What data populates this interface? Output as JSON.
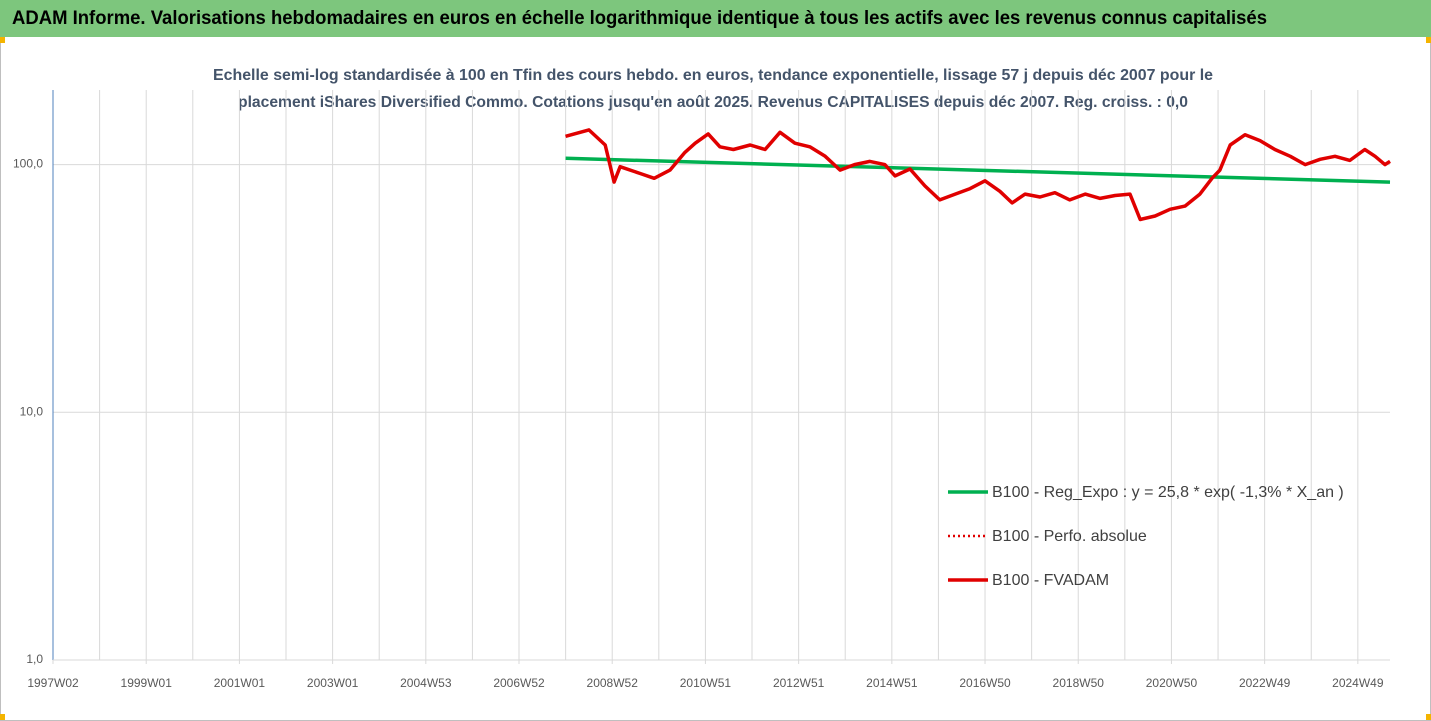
{
  "chart_data": {
    "type": "line",
    "title": "ADAM Informe. Valorisations hebdomadaires en euros en échelle logarithmique identique à tous les actifs avec les revenus connus capitalisés",
    "subtitle": [
      "Echelle semi-log standardisée à 100 en Tfin des cours hebdo. en euros, tendance exponentielle, lissage 57 j depuis déc 2007 pour le",
      "placement iShares Diversified Commo. Cotations jusqu'en août 2025. Revenus CAPITALISES depuis déc 2007. Reg. croiss. : 0,0"
    ],
    "log_scale": true,
    "ylim": [
      1,
      200
    ],
    "yticks": [
      {
        "value": 1,
        "label": "1,0"
      },
      {
        "value": 10,
        "label": "10,0"
      },
      {
        "value": 100,
        "label": "100,0"
      }
    ],
    "xlim": [
      1997.0,
      2025.69
    ],
    "xticks": [
      {
        "value": 1997,
        "label": "1997W02"
      },
      {
        "value": 1999,
        "label": "1999W01"
      },
      {
        "value": 2001,
        "label": "2001W01"
      },
      {
        "value": 2003,
        "label": "2003W01"
      },
      {
        "value": 2005,
        "label": "2004W53"
      },
      {
        "value": 2007,
        "label": "2006W52"
      },
      {
        "value": 2009,
        "label": "2008W52"
      },
      {
        "value": 2011,
        "label": "2010W51"
      },
      {
        "value": 2013,
        "label": "2012W51"
      },
      {
        "value": 2015,
        "label": "2014W51"
      },
      {
        "value": 2017,
        "label": "2016W50"
      },
      {
        "value": 2019,
        "label": "2018W50"
      },
      {
        "value": 2021,
        "label": "2020W50"
      },
      {
        "value": 2023,
        "label": "2022W49"
      },
      {
        "value": 2025,
        "label": "2024W49"
      }
    ],
    "x_grid": [
      1997,
      1998,
      1999,
      2000,
      2001,
      2002,
      2003,
      2004,
      2005,
      2006,
      2007,
      2008,
      2009,
      2010,
      2011,
      2012,
      2013,
      2014,
      2015,
      2016,
      2017,
      2018,
      2019,
      2020,
      2021,
      2022,
      2023,
      2024,
      2025
    ],
    "grid": true,
    "legend_position": "right",
    "series": [
      {
        "name": "B100 - Reg_Expo : y = 25,8 * exp( -1,3% *  X_an )",
        "color": "#00b050",
        "style": "solid",
        "x": [
          2008.0,
          2025.69
        ],
        "values": [
          106,
          85
        ]
      },
      {
        "name": "B100 - Perfo. absolue",
        "color": "#e00000",
        "style": "dotted",
        "x": [
          2008.0,
          2008.5,
          2008.85,
          2009.04,
          2009.17,
          2009.6,
          2009.9,
          2010.24,
          2010.56,
          2010.78,
          2011.06,
          2011.31,
          2011.6,
          2011.96,
          2012.28,
          2012.6,
          2012.92,
          2013.24,
          2013.57,
          2013.89,
          2014.2,
          2014.53,
          2014.85,
          2015.07,
          2015.39,
          2015.71,
          2016.03,
          2016.36,
          2016.68,
          2017.0,
          2017.32,
          2017.58,
          2017.86,
          2018.18,
          2018.5,
          2018.82,
          2019.15,
          2019.47,
          2019.79,
          2020.11,
          2020.33,
          2020.65,
          2020.97,
          2021.29,
          2021.61,
          2021.87,
          2022.04,
          2022.26,
          2022.58,
          2022.9,
          2023.22,
          2023.55,
          2023.87,
          2024.19,
          2024.51,
          2024.83,
          2025.15,
          2025.37,
          2025.58,
          2025.69
        ],
        "values": [
          130,
          138,
          120,
          85,
          98,
          92,
          88,
          95,
          112,
          122,
          133,
          118,
          115,
          120,
          115,
          135,
          122,
          118,
          108,
          95,
          100,
          103,
          100,
          90,
          96,
          82,
          72,
          76,
          80,
          86,
          78,
          70,
          76,
          74,
          77,
          72,
          76,
          73,
          75,
          76,
          60,
          62,
          66,
          68,
          76,
          88,
          95,
          120,
          132,
          125,
          115,
          108,
          100,
          105,
          108,
          104,
          115,
          108,
          100,
          103
        ]
      },
      {
        "name": "B100 - FVADAM",
        "color": "#e00000",
        "style": "solid",
        "x": [
          2008.0,
          2008.5,
          2008.85,
          2009.04,
          2009.17,
          2009.6,
          2009.9,
          2010.24,
          2010.56,
          2010.78,
          2011.06,
          2011.31,
          2011.6,
          2011.96,
          2012.28,
          2012.6,
          2012.92,
          2013.24,
          2013.57,
          2013.89,
          2014.2,
          2014.53,
          2014.85,
          2015.07,
          2015.39,
          2015.71,
          2016.03,
          2016.36,
          2016.68,
          2017.0,
          2017.32,
          2017.58,
          2017.86,
          2018.18,
          2018.5,
          2018.82,
          2019.15,
          2019.47,
          2019.79,
          2020.11,
          2020.33,
          2020.65,
          2020.97,
          2021.29,
          2021.61,
          2021.87,
          2022.04,
          2022.26,
          2022.58,
          2022.9,
          2023.22,
          2023.55,
          2023.87,
          2024.19,
          2024.51,
          2024.83,
          2025.15,
          2025.37,
          2025.58,
          2025.69
        ],
        "values": [
          130,
          138,
          120,
          85,
          98,
          92,
          88,
          95,
          112,
          122,
          133,
          118,
          115,
          120,
          115,
          135,
          122,
          118,
          108,
          95,
          100,
          103,
          100,
          90,
          96,
          82,
          72,
          76,
          80,
          86,
          78,
          70,
          76,
          74,
          77,
          72,
          76,
          73,
          75,
          76,
          60,
          62,
          66,
          68,
          76,
          88,
          95,
          120,
          132,
          125,
          115,
          108,
          100,
          105,
          108,
          104,
          115,
          108,
          100,
          103
        ]
      }
    ]
  }
}
